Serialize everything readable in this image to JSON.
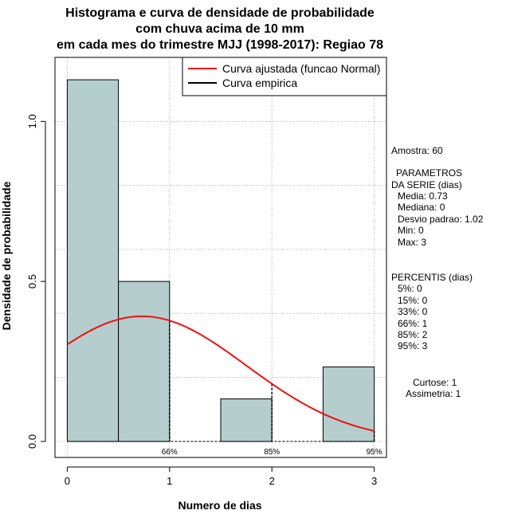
{
  "chart_data": {
    "type": "bar",
    "title_lines": [
      "Histograma e curva de densidade de probabilidade",
      "com chuva acima de 10 mm",
      "em cada mes do trimestre MJJ (1998-2017): Regiao 78"
    ],
    "xlabel": "Numero de dias",
    "ylabel": "Densidade de probabilidade",
    "xlim": [
      -0.12,
      3.12
    ],
    "ylim": [
      -0.05,
      1.2
    ],
    "x_ticks": [
      0,
      1,
      2,
      3
    ],
    "x_tick_labels": [
      "0",
      "1",
      "2",
      "3"
    ],
    "y_ticks": [
      0.0,
      0.5,
      1.0
    ],
    "y_tick_labels": [
      "0.0",
      "0.5",
      "1.0"
    ],
    "grid": true,
    "bins": [
      {
        "from": 0.0,
        "to": 0.5,
        "density": 1.13
      },
      {
        "from": 0.5,
        "to": 1.0,
        "density": 0.5
      },
      {
        "from": 1.0,
        "to": 1.5,
        "density": 0.0
      },
      {
        "from": 1.5,
        "to": 2.0,
        "density": 0.133
      },
      {
        "from": 2.0,
        "to": 2.5,
        "density": 0.0
      },
      {
        "from": 2.5,
        "to": 3.0,
        "density": 0.233
      }
    ],
    "bar_color": "#b5cdcd",
    "curve_color": "#ee1111",
    "normal_curve": {
      "mean": 0.73,
      "sd": 1.02,
      "x_from": 0.0,
      "x_to": 3.0
    },
    "percentile_markers": [
      {
        "x": 1,
        "label": "66%"
      },
      {
        "x": 2,
        "label": "85%"
      },
      {
        "x": 3,
        "label": "95%"
      }
    ],
    "legend": {
      "position": "top-right",
      "entries": [
        {
          "label": "Curva ajustada (funcao Normal)",
          "color": "#ee1111"
        },
        {
          "label": "Curva empirica",
          "color": "#000000"
        }
      ]
    }
  },
  "sidebar": {
    "amostra": "Amostra: 60",
    "parametros_title_1": "PARAMETROS",
    "parametros_title_2": "DA SERIE (dias)",
    "media": "Media: 0.73",
    "mediana": "Mediana: 0",
    "desvio": "Desvio padrao: 1.02",
    "min": "Min: 0",
    "max": "Max: 3",
    "percentis_title": "PERCENTIS (dias)",
    "p5": "5%: 0",
    "p15": "15%: 0",
    "p33": "33%: 0",
    "p66": "66%: 1",
    "p85": "85%: 2",
    "p95": "95%: 3",
    "curtose": "Curtose: 1",
    "assimetria": "Assimetria: 1"
  }
}
